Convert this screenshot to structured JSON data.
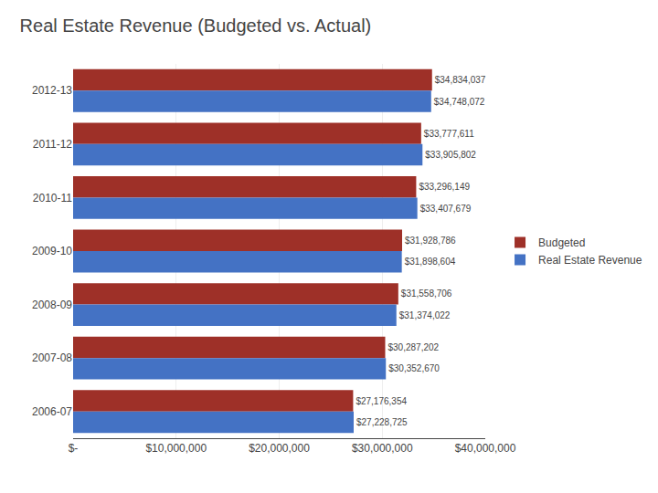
{
  "chart_data": {
    "type": "bar",
    "orientation": "horizontal",
    "title": "Real Estate Revenue (Budgeted vs. Actual)",
    "categories": [
      "2012-13",
      "2011-12",
      "2010-11",
      "2009-10",
      "2008-09",
      "2007-08",
      "2006-07"
    ],
    "series": [
      {
        "name": "Budgeted",
        "color": "#9e3028",
        "values": [
          34834037,
          33777611,
          33296149,
          31928786,
          31558706,
          30287202,
          27176354
        ],
        "value_labels": [
          "$34,834,037",
          "$33,777,611",
          "$33,296,149",
          "$31,928,786",
          "$31,558,706",
          "$30,287,202",
          "$27,176,354"
        ]
      },
      {
        "name": "Real Estate Revenue",
        "color": "#4472c4",
        "values": [
          34748072,
          33905802,
          33407679,
          31898604,
          31374022,
          30352670,
          27228725
        ],
        "value_labels": [
          "$34,748,072",
          "$33,905,802",
          "$33,407,679",
          "$31,898,604",
          "$31,374,022",
          "$30,352,670",
          "$27,228,725"
        ]
      }
    ],
    "xlim": [
      0,
      40000000
    ],
    "xticks": [
      {
        "value": 0,
        "label": "$-"
      },
      {
        "value": 10000000,
        "label": "$10,000,000"
      },
      {
        "value": 20000000,
        "label": "$20,000,000"
      },
      {
        "value": 30000000,
        "label": "$30,000,000"
      },
      {
        "value": 40000000,
        "label": "$40,000,000"
      }
    ],
    "grid": true,
    "legend": "right",
    "data_labels": true
  }
}
